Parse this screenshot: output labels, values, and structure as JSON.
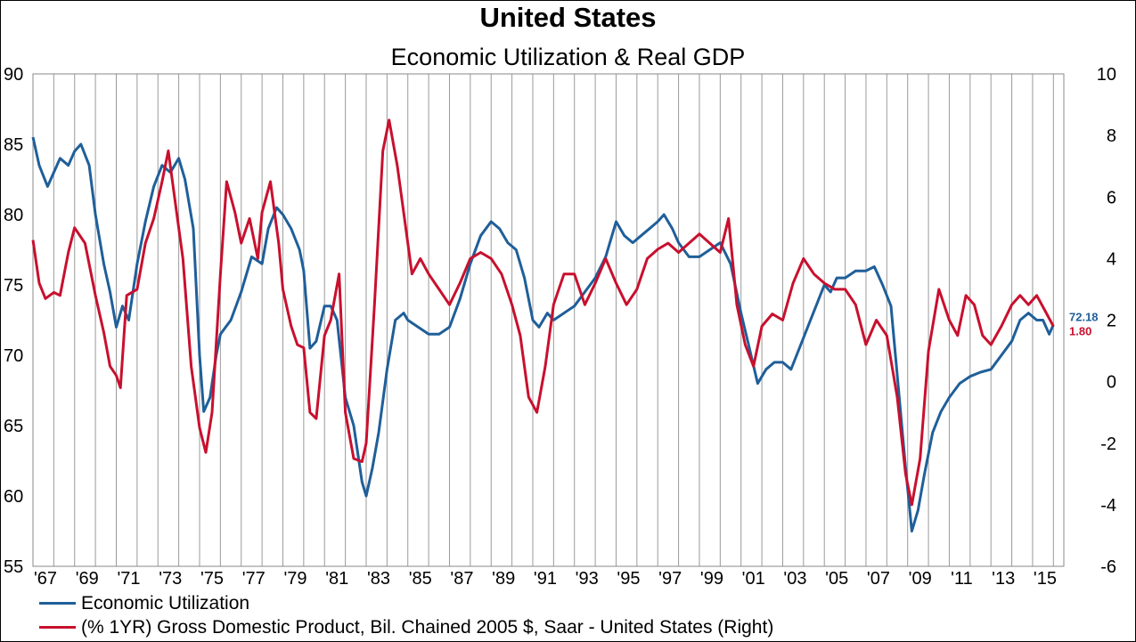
{
  "chart_data": {
    "type": "line",
    "title": "United States",
    "subtitle": "Economic Utilization & Real GDP",
    "left_axis": {
      "ylim": [
        55,
        90
      ],
      "ticks": [
        55,
        60,
        65,
        70,
        75,
        80,
        85,
        90
      ]
    },
    "right_axis": {
      "ylim": [
        -6,
        10
      ],
      "ticks": [
        -6,
        -4,
        -2,
        0,
        2,
        4,
        6,
        8,
        10
      ]
    },
    "x_axis": {
      "range": [
        1967,
        2016.5
      ],
      "tick_labels": [
        "'67",
        "'69",
        "'71",
        "'73",
        "'75",
        "'77",
        "'79",
        "'81",
        "'83",
        "'85",
        "'87",
        "'89",
        "'91",
        "'93",
        "'95",
        "'97",
        "'99",
        "'01",
        "'03",
        "'05",
        "'07",
        "'09",
        "'11",
        "'13",
        "'15"
      ],
      "tick_years": [
        1967,
        1969,
        1971,
        1973,
        1975,
        1977,
        1979,
        1981,
        1983,
        1985,
        1987,
        1989,
        1991,
        1993,
        1995,
        1997,
        1999,
        2001,
        2003,
        2005,
        2007,
        2009,
        2011,
        2013,
        2015
      ]
    },
    "grid": "vertical",
    "legend_position": "bottom-left",
    "series": [
      {
        "name": "Economic Utilization",
        "axis": "left",
        "color": "#1f5f99",
        "end_label": "72.18",
        "points": [
          [
            1967.0,
            85.5
          ],
          [
            1967.3,
            83.5
          ],
          [
            1967.7,
            82.0
          ],
          [
            1968.0,
            83.0
          ],
          [
            1968.3,
            84.0
          ],
          [
            1968.7,
            83.5
          ],
          [
            1969.0,
            84.5
          ],
          [
            1969.3,
            85.0
          ],
          [
            1969.7,
            83.5
          ],
          [
            1970.0,
            80.0
          ],
          [
            1970.4,
            76.5
          ],
          [
            1970.7,
            74.5
          ],
          [
            1971.0,
            72.0
          ],
          [
            1971.3,
            73.5
          ],
          [
            1971.6,
            72.5
          ],
          [
            1972.0,
            76.5
          ],
          [
            1972.4,
            79.5
          ],
          [
            1972.8,
            82.0
          ],
          [
            1973.2,
            83.5
          ],
          [
            1973.6,
            83.0
          ],
          [
            1974.0,
            84.0
          ],
          [
            1974.3,
            82.5
          ],
          [
            1974.7,
            79.0
          ],
          [
            1975.0,
            70.0
          ],
          [
            1975.2,
            66.0
          ],
          [
            1975.5,
            67.0
          ],
          [
            1975.8,
            70.0
          ],
          [
            1976.0,
            71.5
          ],
          [
            1976.5,
            72.5
          ],
          [
            1977.0,
            74.5
          ],
          [
            1977.5,
            77.0
          ],
          [
            1978.0,
            76.5
          ],
          [
            1978.3,
            79.0
          ],
          [
            1978.7,
            80.5
          ],
          [
            1979.0,
            80.0
          ],
          [
            1979.4,
            79.0
          ],
          [
            1979.8,
            77.5
          ],
          [
            1980.0,
            76.0
          ],
          [
            1980.3,
            70.5
          ],
          [
            1980.6,
            71.0
          ],
          [
            1981.0,
            73.5
          ],
          [
            1981.3,
            73.5
          ],
          [
            1981.6,
            72.5
          ],
          [
            1982.0,
            67.0
          ],
          [
            1982.4,
            65.0
          ],
          [
            1982.8,
            61.0
          ],
          [
            1983.0,
            60.0
          ],
          [
            1983.3,
            62.0
          ],
          [
            1983.6,
            64.5
          ],
          [
            1984.0,
            69.0
          ],
          [
            1984.4,
            72.5
          ],
          [
            1984.8,
            73.0
          ],
          [
            1985.0,
            72.5
          ],
          [
            1985.5,
            72.0
          ],
          [
            1986.0,
            71.5
          ],
          [
            1986.5,
            71.5
          ],
          [
            1987.0,
            72.0
          ],
          [
            1987.5,
            74.0
          ],
          [
            1988.0,
            76.5
          ],
          [
            1988.5,
            78.5
          ],
          [
            1989.0,
            79.5
          ],
          [
            1989.4,
            79.0
          ],
          [
            1989.8,
            78.0
          ],
          [
            1990.2,
            77.5
          ],
          [
            1990.6,
            75.5
          ],
          [
            1991.0,
            72.5
          ],
          [
            1991.3,
            72.0
          ],
          [
            1991.7,
            73.0
          ],
          [
            1992.0,
            72.5
          ],
          [
            1992.5,
            73.0
          ],
          [
            1993.0,
            73.5
          ],
          [
            1993.5,
            74.5
          ],
          [
            1994.0,
            75.5
          ],
          [
            1994.5,
            77.0
          ],
          [
            1995.0,
            79.5
          ],
          [
            1995.4,
            78.5
          ],
          [
            1995.8,
            78.0
          ],
          [
            1996.2,
            78.5
          ],
          [
            1996.6,
            79.0
          ],
          [
            1997.0,
            79.5
          ],
          [
            1997.3,
            80.0
          ],
          [
            1997.7,
            79.0
          ],
          [
            1998.0,
            78.0
          ],
          [
            1998.5,
            77.0
          ],
          [
            1999.0,
            77.0
          ],
          [
            1999.5,
            77.5
          ],
          [
            2000.0,
            78.0
          ],
          [
            2000.5,
            76.5
          ],
          [
            2001.0,
            73.0
          ],
          [
            2001.4,
            70.5
          ],
          [
            2001.8,
            68.0
          ],
          [
            2002.2,
            69.0
          ],
          [
            2002.6,
            69.5
          ],
          [
            2003.0,
            69.5
          ],
          [
            2003.4,
            69.0
          ],
          [
            2003.8,
            70.5
          ],
          [
            2004.2,
            72.0
          ],
          [
            2004.6,
            73.5
          ],
          [
            2005.0,
            75.0
          ],
          [
            2005.3,
            74.5
          ],
          [
            2005.6,
            75.5
          ],
          [
            2006.0,
            75.5
          ],
          [
            2006.5,
            76.0
          ],
          [
            2007.0,
            76.0
          ],
          [
            2007.4,
            76.3
          ],
          [
            2007.8,
            75.0
          ],
          [
            2008.2,
            73.5
          ],
          [
            2008.6,
            67.0
          ],
          [
            2008.9,
            62.0
          ],
          [
            2009.2,
            57.5
          ],
          [
            2009.5,
            59.0
          ],
          [
            2009.8,
            61.5
          ],
          [
            2010.2,
            64.5
          ],
          [
            2010.6,
            66.0
          ],
          [
            2011.0,
            67.0
          ],
          [
            2011.5,
            68.0
          ],
          [
            2012.0,
            68.5
          ],
          [
            2012.5,
            68.8
          ],
          [
            2013.0,
            69.0
          ],
          [
            2013.5,
            70.0
          ],
          [
            2014.0,
            71.0
          ],
          [
            2014.4,
            72.5
          ],
          [
            2014.8,
            73.0
          ],
          [
            2015.2,
            72.5
          ],
          [
            2015.5,
            72.5
          ],
          [
            2015.8,
            71.5
          ],
          [
            2016.0,
            72.18
          ]
        ]
      },
      {
        "name": "(% 1YR) Gross Domestic Product, Bil. Chained 2005 $, Saar - United States  (Right)",
        "axis": "right",
        "color": "#c8102e",
        "end_label": "1.80",
        "points": [
          [
            1967.0,
            4.6
          ],
          [
            1967.3,
            3.2
          ],
          [
            1967.6,
            2.7
          ],
          [
            1968.0,
            2.9
          ],
          [
            1968.3,
            2.8
          ],
          [
            1968.7,
            4.2
          ],
          [
            1969.0,
            5.0
          ],
          [
            1969.5,
            4.5
          ],
          [
            1970.0,
            2.8
          ],
          [
            1970.4,
            1.6
          ],
          [
            1970.7,
            0.5
          ],
          [
            1971.0,
            0.2
          ],
          [
            1971.2,
            -0.2
          ],
          [
            1971.5,
            2.8
          ],
          [
            1972.0,
            3.0
          ],
          [
            1972.4,
            4.5
          ],
          [
            1972.8,
            5.3
          ],
          [
            1973.2,
            6.5
          ],
          [
            1973.5,
            7.5
          ],
          [
            1973.8,
            6.0
          ],
          [
            1974.2,
            4.0
          ],
          [
            1974.6,
            0.5
          ],
          [
            1975.0,
            -1.5
          ],
          [
            1975.3,
            -2.3
          ],
          [
            1975.6,
            -1.0
          ],
          [
            1976.0,
            3.5
          ],
          [
            1976.3,
            6.5
          ],
          [
            1976.7,
            5.5
          ],
          [
            1977.0,
            4.5
          ],
          [
            1977.4,
            5.3
          ],
          [
            1977.8,
            4.0
          ],
          [
            1978.0,
            5.5
          ],
          [
            1978.4,
            6.5
          ],
          [
            1978.8,
            4.5
          ],
          [
            1979.0,
            3.0
          ],
          [
            1979.4,
            1.8
          ],
          [
            1979.7,
            1.2
          ],
          [
            1980.0,
            1.1
          ],
          [
            1980.3,
            -1.0
          ],
          [
            1980.6,
            -1.2
          ],
          [
            1981.0,
            1.5
          ],
          [
            1981.3,
            2.0
          ],
          [
            1981.7,
            3.5
          ],
          [
            1982.0,
            -1.0
          ],
          [
            1982.4,
            -2.5
          ],
          [
            1982.8,
            -2.6
          ],
          [
            1983.0,
            -2.0
          ],
          [
            1983.4,
            2.5
          ],
          [
            1983.8,
            7.5
          ],
          [
            1984.1,
            8.5
          ],
          [
            1984.5,
            7.0
          ],
          [
            1984.9,
            5.0
          ],
          [
            1985.2,
            3.5
          ],
          [
            1985.6,
            4.0
          ],
          [
            1986.0,
            3.5
          ],
          [
            1986.5,
            3.0
          ],
          [
            1987.0,
            2.5
          ],
          [
            1987.5,
            3.2
          ],
          [
            1988.0,
            4.0
          ],
          [
            1988.5,
            4.2
          ],
          [
            1989.0,
            4.0
          ],
          [
            1989.5,
            3.5
          ],
          [
            1990.0,
            2.5
          ],
          [
            1990.4,
            1.5
          ],
          [
            1990.8,
            -0.5
          ],
          [
            1991.2,
            -1.0
          ],
          [
            1991.6,
            0.5
          ],
          [
            1992.0,
            2.5
          ],
          [
            1992.5,
            3.5
          ],
          [
            1993.0,
            3.5
          ],
          [
            1993.5,
            2.5
          ],
          [
            1994.0,
            3.2
          ],
          [
            1994.5,
            4.0
          ],
          [
            1995.0,
            3.2
          ],
          [
            1995.5,
            2.5
          ],
          [
            1996.0,
            3.0
          ],
          [
            1996.5,
            4.0
          ],
          [
            1997.0,
            4.3
          ],
          [
            1997.5,
            4.5
          ],
          [
            1998.0,
            4.2
          ],
          [
            1998.5,
            4.5
          ],
          [
            1999.0,
            4.8
          ],
          [
            1999.5,
            4.5
          ],
          [
            2000.0,
            4.2
          ],
          [
            2000.4,
            5.3
          ],
          [
            2000.8,
            2.5
          ],
          [
            2001.2,
            1.2
          ],
          [
            2001.6,
            0.5
          ],
          [
            2002.0,
            1.8
          ],
          [
            2002.5,
            2.2
          ],
          [
            2003.0,
            2.0
          ],
          [
            2003.5,
            3.2
          ],
          [
            2004.0,
            4.0
          ],
          [
            2004.5,
            3.5
          ],
          [
            2005.0,
            3.2
          ],
          [
            2005.5,
            3.0
          ],
          [
            2006.0,
            3.0
          ],
          [
            2006.5,
            2.5
          ],
          [
            2007.0,
            1.2
          ],
          [
            2007.5,
            2.0
          ],
          [
            2008.0,
            1.5
          ],
          [
            2008.5,
            -0.5
          ],
          [
            2008.9,
            -3.0
          ],
          [
            2009.2,
            -4.0
          ],
          [
            2009.6,
            -2.5
          ],
          [
            2010.0,
            1.0
          ],
          [
            2010.5,
            3.0
          ],
          [
            2011.0,
            2.0
          ],
          [
            2011.4,
            1.5
          ],
          [
            2011.8,
            2.8
          ],
          [
            2012.2,
            2.5
          ],
          [
            2012.6,
            1.5
          ],
          [
            2013.0,
            1.2
          ],
          [
            2013.5,
            1.8
          ],
          [
            2014.0,
            2.5
          ],
          [
            2014.4,
            2.8
          ],
          [
            2014.8,
            2.5
          ],
          [
            2015.2,
            2.8
          ],
          [
            2015.6,
            2.3
          ],
          [
            2016.0,
            1.8
          ]
        ]
      }
    ]
  },
  "legend": {
    "items": [
      {
        "label": "Economic Utilization",
        "color": "#1f5f99"
      },
      {
        "label": "(% 1YR) Gross Domestic Product, Bil. Chained 2005 $, Saar - United States  (Right)",
        "color": "#c8102e"
      }
    ]
  }
}
